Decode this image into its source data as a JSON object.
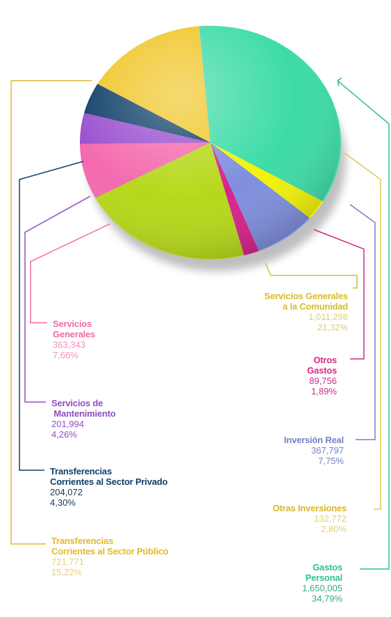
{
  "chart_data": {
    "type": "pie",
    "slices": [
      {
        "name": "Gastos Personal",
        "title_lines": [
          "Gastos",
          "Personal"
        ],
        "value": "1,650,005",
        "percent": "34,79%",
        "pct": 34.79,
        "color": "#3ddba8"
      },
      {
        "name": "Otras Inversiones",
        "title_lines": [
          "Otras Inversiones"
        ],
        "value": "132,772",
        "percent": "2,80%",
        "pct": 2.8,
        "color": "#f2f20a"
      },
      {
        "name": "Inversión Real",
        "title_lines": [
          "Inversión Real"
        ],
        "value": "367,797",
        "percent": "7,75%",
        "pct": 7.75,
        "color": "#7f8fdd"
      },
      {
        "name": "Otros Gastos",
        "title_lines": [
          "Otros",
          "Gastos"
        ],
        "value": "89,756",
        "percent": "1,89%",
        "pct": 1.89,
        "color": "#d8228c"
      },
      {
        "name": "Servicios Generales a la Comunidad",
        "title_lines": [
          "Servicios Generales",
          "a la Comunidad"
        ],
        "value": "1,011,298",
        "percent": "21,32%",
        "pct": 21.32,
        "color": "#b6d81a"
      },
      {
        "name": "Servicios Generales",
        "title_lines": [
          "Servicios",
          "Generales"
        ],
        "value": "363,343",
        "percent": "7,66%",
        "pct": 7.66,
        "color": "#f36aae"
      },
      {
        "name": "Servicios de Mantenimiento",
        "title_lines": [
          "Servicios de",
          " Mantenimiento"
        ],
        "value": "201,994",
        "percent": "4,26%",
        "pct": 4.26,
        "color": "#9a50cf"
      },
      {
        "name": "Transferencias Corrientes al Sector Privado",
        "title_lines": [
          "Transferencias",
          "Corrientes al Sector Privado"
        ],
        "value": "204,072",
        "percent": "4,30%",
        "pct": 4.3,
        "color": "#0f3f69"
      },
      {
        "name": "Transferencias Corrientes al Sector Público",
        "title_lines": [
          "Transferencias",
          "Corrientes al Sector Público"
        ],
        "value": "721,771",
        "percent": "15,22%",
        "pct": 15.22,
        "color": "#f0c628"
      }
    ]
  },
  "colors": {
    "gastos_personal": "#2fbf95",
    "otras_inversiones": "#e0c84a",
    "inversion_real": "#7481c8",
    "otros_gastos": "#d12b86",
    "servicios_comunidad": "#d8bb2a",
    "servicios_generales": "#f06aa6",
    "servicios_mantenimiento": "#8f4fc0",
    "transferencias_privado": "#0f3f69",
    "transferencias_publico": "#e0b92a"
  }
}
